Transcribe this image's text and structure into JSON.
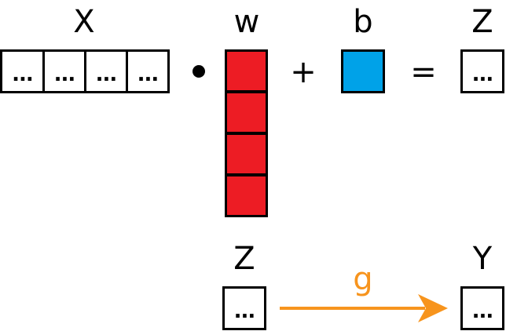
{
  "labels": {
    "x": "X",
    "w": "w",
    "b": "b",
    "z_top": "Z",
    "z_bottom": "Z",
    "y": "Y",
    "g": "g"
  },
  "operators": {
    "plus": "+",
    "equals": "="
  },
  "cell_text": "...",
  "x_cells": [
    "...",
    "...",
    "...",
    "..."
  ],
  "colors": {
    "weight": "#ed1c24",
    "bias": "#00a2e8",
    "arrow": "#f7941d",
    "ink": "#000000"
  }
}
